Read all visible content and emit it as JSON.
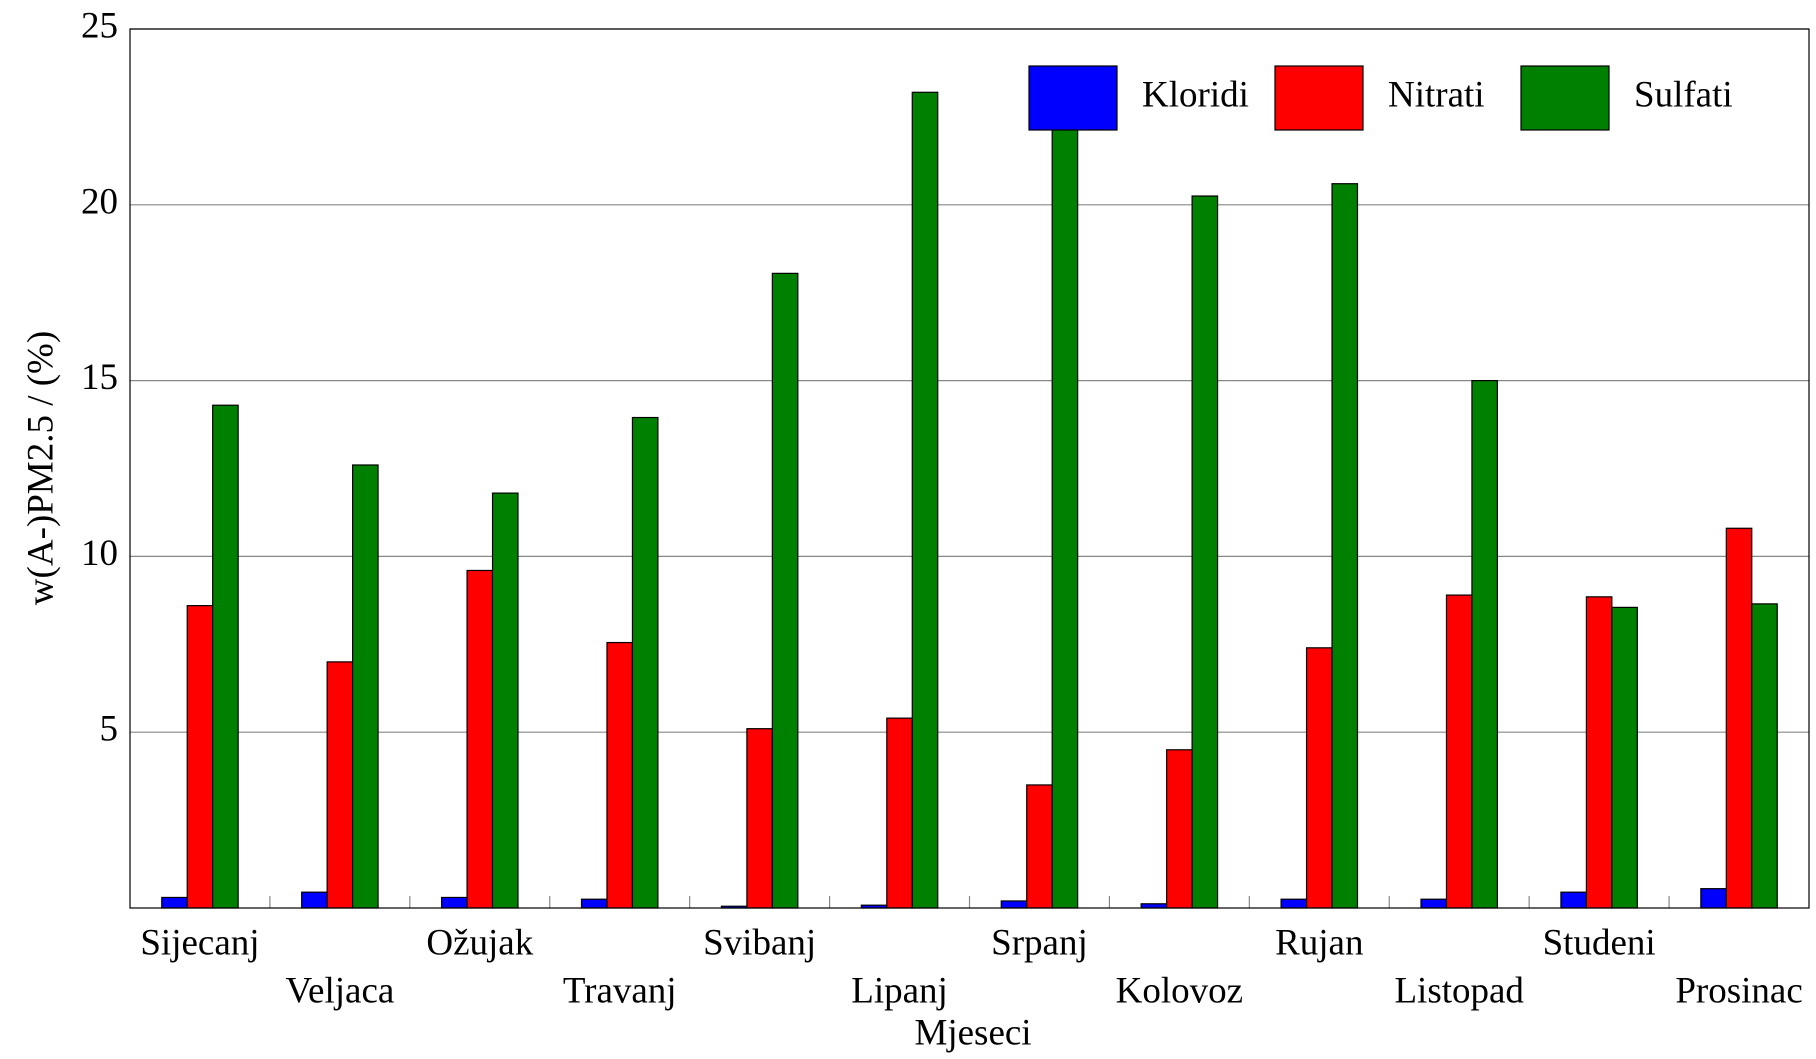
{
  "chart_data": {
    "type": "bar",
    "x_label": "Mjeseci",
    "y_label": "w(A-)PM2.5 / (%)",
    "categories": [
      "Sijecanj",
      "Veljaca",
      "Ožujak",
      "Travanj",
      "Svibanj",
      "Lipanj",
      "Srpanj",
      "Kolovoz",
      "Rujan",
      "Listopad",
      "Studeni",
      "Prosinac"
    ],
    "series": [
      {
        "name": "Kloridi",
        "color": "#0000ff",
        "values": [
          0.3,
          0.45,
          0.3,
          0.25,
          0.05,
          0.08,
          0.2,
          0.12,
          0.25,
          0.25,
          0.45,
          0.55
        ]
      },
      {
        "name": "Nitrati",
        "color": "#ff0000",
        "values": [
          8.6,
          7.0,
          9.6,
          7.55,
          5.1,
          5.4,
          3.5,
          4.5,
          7.4,
          8.9,
          8.85,
          10.8
        ]
      },
      {
        "name": "Sulfati",
        "color": "#008000",
        "values": [
          14.3,
          12.6,
          11.8,
          13.95,
          18.05,
          23.2,
          23.5,
          20.25,
          20.6,
          15.0,
          8.55,
          8.65
        ]
      }
    ],
    "ylim": [
      0,
      25
    ],
    "yticks": [
      5,
      10,
      15,
      20,
      25
    ],
    "grid": true,
    "legend": "top-right"
  }
}
